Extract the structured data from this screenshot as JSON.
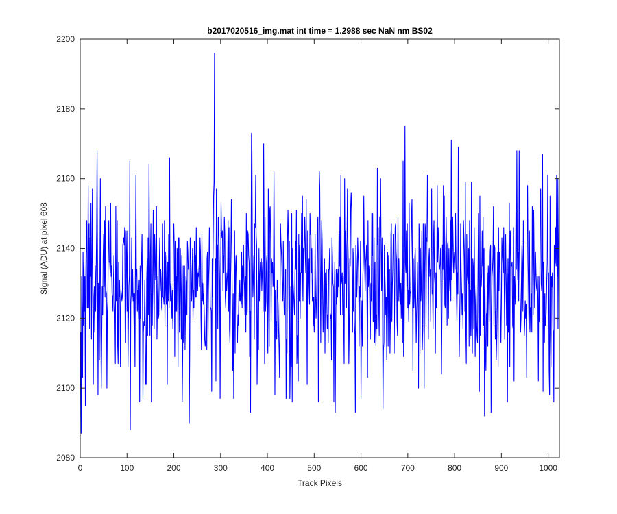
{
  "chart_data": {
    "type": "line",
    "title": "b2017020516_img.mat int time = 1.2988 sec  NaN nm BS02",
    "xlabel": "Track Pixels",
    "ylabel": "Signal (ADU) at pixel 608",
    "xlim": [
      0,
      1024
    ],
    "ylim": [
      2080,
      2200
    ],
    "xticks": [
      0,
      100,
      200,
      300,
      400,
      500,
      600,
      700,
      800,
      900,
      1000
    ],
    "yticks": [
      2080,
      2100,
      2120,
      2140,
      2160,
      2180,
      2200
    ],
    "grid": false,
    "line_color": "#0000ff",
    "series": [
      {
        "x_start": 1,
        "x_step": 1,
        "noise": {
          "mean": 2130,
          "std": 13,
          "min": 2087,
          "max": 2196,
          "n": 1024,
          "seed": 608
        },
        "peaks": [
          {
            "x": 2,
            "y": 2087
          },
          {
            "x": 5,
            "y": 2103
          },
          {
            "x": 11,
            "y": 2095
          },
          {
            "x": 38,
            "y": 2098
          },
          {
            "x": 23,
            "y": 2153
          },
          {
            "x": 106,
            "y": 2165
          },
          {
            "x": 107,
            "y": 2088
          },
          {
            "x": 134,
            "y": 2097
          },
          {
            "x": 191,
            "y": 2166
          },
          {
            "x": 233,
            "y": 2090
          },
          {
            "x": 287,
            "y": 2196
          },
          {
            "x": 290,
            "y": 2102
          },
          {
            "x": 299,
            "y": 2097
          },
          {
            "x": 364,
            "y": 2093
          },
          {
            "x": 366,
            "y": 2173
          },
          {
            "x": 392,
            "y": 2170
          },
          {
            "x": 426,
            "y": 2103
          },
          {
            "x": 440,
            "y": 2097
          },
          {
            "x": 509,
            "y": 2096
          },
          {
            "x": 545,
            "y": 2093
          },
          {
            "x": 588,
            "y": 2093
          },
          {
            "x": 600,
            "y": 2097
          },
          {
            "x": 647,
            "y": 2094
          },
          {
            "x": 694,
            "y": 2175
          },
          {
            "x": 723,
            "y": 2100
          },
          {
            "x": 772,
            "y": 2104
          },
          {
            "x": 793,
            "y": 2094
          },
          {
            "x": 793,
            "y": 2171
          },
          {
            "x": 808,
            "y": 2169
          },
          {
            "x": 864,
            "y": 2092
          },
          {
            "x": 878,
            "y": 2093
          },
          {
            "x": 1003,
            "y": 2098
          },
          {
            "x": 1018,
            "y": 2161
          },
          {
            "x": 1020,
            "y": 2160
          },
          {
            "x": 1024,
            "y": 2112
          }
        ]
      }
    ]
  }
}
